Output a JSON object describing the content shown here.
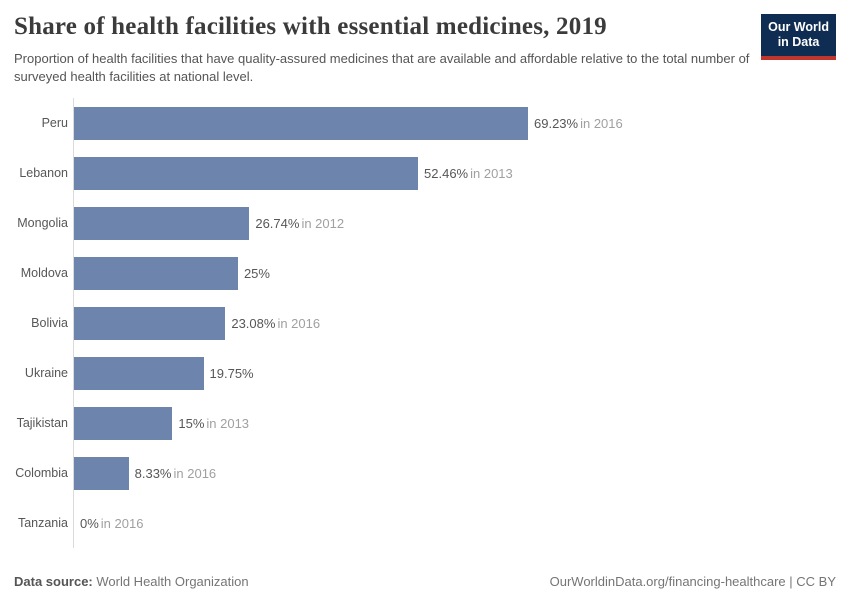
{
  "header": {
    "title": "Share of health facilities with essential medicines, 2019",
    "subtitle": "Proportion of health facilities that have quality-assured medicines that are available and affordable relative to the total number of surveyed health facilities at national level.",
    "logo_line1": "Our World",
    "logo_line2": "in Data"
  },
  "chart_data": {
    "type": "bar",
    "orientation": "horizontal",
    "title": "Share of health facilities with essential medicines, 2019",
    "categories": [
      "Peru",
      "Lebanon",
      "Mongolia",
      "Moldova",
      "Bolivia",
      "Ukraine",
      "Tajikistan",
      "Colombia",
      "Tanzania"
    ],
    "values": [
      69.23,
      52.46,
      26.74,
      25,
      23.08,
      19.75,
      15,
      8.33,
      0
    ],
    "data_labels": [
      {
        "value_text": "69.23%",
        "year_text": "in 2016"
      },
      {
        "value_text": "52.46%",
        "year_text": "in 2013"
      },
      {
        "value_text": "26.74%",
        "year_text": "in 2012"
      },
      {
        "value_text": "25%",
        "year_text": ""
      },
      {
        "value_text": "23.08%",
        "year_text": "in 2016"
      },
      {
        "value_text": "19.75%",
        "year_text": ""
      },
      {
        "value_text": "15%",
        "year_text": "in 2013"
      },
      {
        "value_text": "8.33%",
        "year_text": "in 2016"
      },
      {
        "value_text": "0%",
        "year_text": "in 2016"
      }
    ],
    "xlim": [
      0,
      69.23
    ],
    "grid": false,
    "legend": "none",
    "bar_color": "#6d84ad",
    "axis_color": "#dadada"
  },
  "footer": {
    "source_label": "Data source:",
    "source_value": " World Health Organization",
    "link_text": "OurWorldinData.org/financing-healthcare | CC BY"
  },
  "colors": {
    "bar": "#6d84ad",
    "axis": "#dadada",
    "logo_navy": "#0f2d52",
    "logo_red": "#c0362c",
    "title_text": "#3b3b3b",
    "value_text": "#575757",
    "year_text": "#a0a0a0"
  }
}
